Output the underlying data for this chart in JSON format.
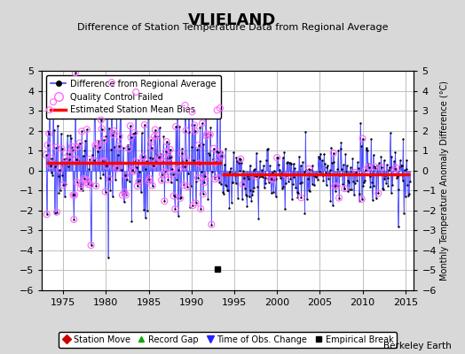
{
  "title": "VLIELAND",
  "subtitle": "Difference of Station Temperature Data from Regional Average",
  "ylabel_right": "Monthly Temperature Anomaly Difference (°C)",
  "credit": "Berkeley Earth",
  "ylim": [
    -6,
    5
  ],
  "xlim": [
    1972.5,
    2016
  ],
  "yticks": [
    -6,
    -5,
    -4,
    -3,
    -2,
    -1,
    0,
    1,
    2,
    3,
    4,
    5
  ],
  "xticks": [
    1975,
    1980,
    1985,
    1990,
    1995,
    2000,
    2005,
    2010,
    2015
  ],
  "mean_bias_1": 0.4,
  "mean_bias_2": -0.2,
  "bias_break_year": 1993.5,
  "bg_color": "#d8d8d8",
  "plot_bg_color": "#ffffff",
  "line_color": "#4444ff",
  "marker_color": "#000000",
  "qc_color": "#ff66ff",
  "bias_color": "#ff0000",
  "grid_color": "#c0c0c0",
  "seed": 17
}
